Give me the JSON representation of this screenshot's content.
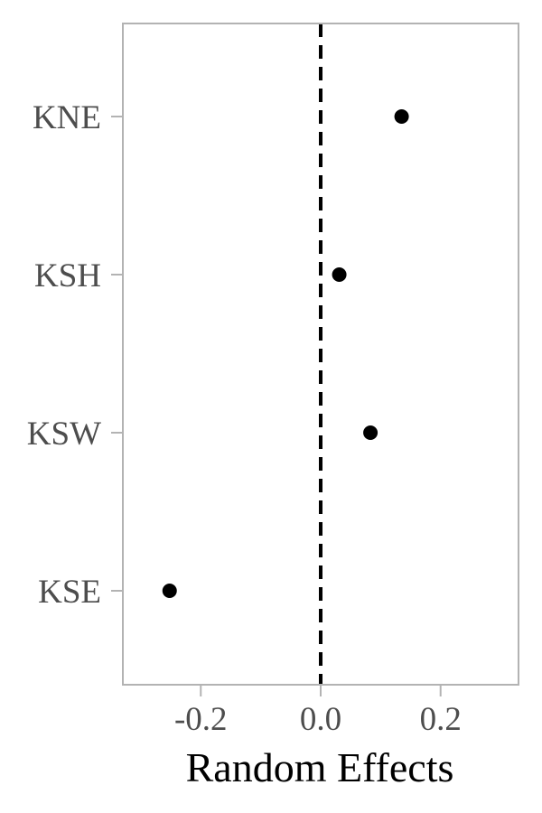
{
  "chart_data": {
    "type": "scatter",
    "title": "",
    "xlabel": "Random Effects",
    "ylabel": "",
    "categories": [
      "KNE",
      "KSH",
      "KSW",
      "KSE"
    ],
    "values": [
      0.135,
      0.031,
      0.083,
      -0.252
    ],
    "xlim": [
      -0.33,
      0.33
    ],
    "xticks": [
      -0.2,
      0.0,
      0.2
    ],
    "xtick_labels": [
      "-0.2",
      "0.0",
      "0.2"
    ],
    "reference_line": {
      "x": 0.0,
      "style": "dashed"
    },
    "grid": false,
    "legend": "none",
    "colors": {
      "point": "#000000",
      "frame": "#b3b3b3",
      "tick_text": "#4d4d4d",
      "reference_line": "#000000"
    }
  }
}
